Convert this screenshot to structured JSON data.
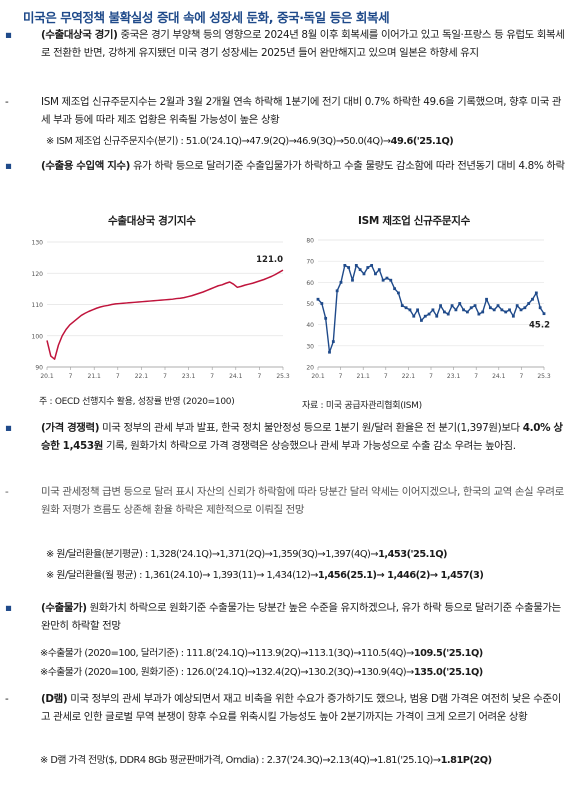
{
  "title": "미국은 무역정책 불확실성 증대 속에 성장세 둔화, 중국·독일 등은 회복세",
  "p1": {
    "head": "(수출대상국 경기)",
    "text": " 중국은 경기 부양책 등의 영향으로 2024년 8월 이후 회복세를 이어가고 있고 독일·프랑스 등 유럽도 회복세로 전환한 반면, 강하게 유지됐던 미국 경기 성장세는 2025년 들어 완만해지고 있으며 일본은 하향세 유지"
  },
  "p2": {
    "text": "ISM 제조업 신규주문지수는 2월과 3월 2개월 연속 하락해 1분기에 전기 대비 0.7% 하락한 49.6을 기록했으며, 향후 미국 관세 부과 등에 따라 제조 업황은 위축될 가능성이 높은 상황",
    "note": "※ ISM 제조업 신규주문지수(분기) : 51.0('24.1Q)→47.9(2Q)→46.9(3Q)→50.0(4Q)→",
    "note_end": "49.6('25.1Q)"
  },
  "p3": {
    "head": "(수출용 수입액 지수)",
    "text": " 유가 하락 등으로 달러기준 수출입물가가 하락하고 수출 물량도 감소함에 따라 전년동기 대비 4.8% 하락"
  },
  "chart_left": {
    "title": "수출대상국 경기지수",
    "source": "주 : OECD 선행지수 활용, 성장률 반영 (2020=100)"
  },
  "chart_right": {
    "title": "ISM 제조업 신규주문지수",
    "source": "자료 : 미국 공급자관리협회(ISM)"
  },
  "chart_data": [
    {
      "type": "line",
      "title": "수출대상국 경기지수",
      "x_ticks": [
        "20.1",
        "7",
        "21.1",
        "7",
        "22.1",
        "7",
        "23.1",
        "7",
        "24.1",
        "7",
        "25.3"
      ],
      "ylim": [
        90,
        130
      ],
      "y_ticks": [
        90,
        100,
        110,
        120,
        130
      ],
      "end_label": "121.0",
      "series": [
        {
          "values": [
            98.5,
            93.5,
            92.5,
            97.0,
            100.0,
            102.0,
            103.5,
            104.5,
            105.5,
            106.5,
            107.2,
            107.8,
            108.3,
            108.8,
            109.2,
            109.5,
            109.7,
            110.0,
            110.2,
            110.3,
            110.4,
            110.5,
            110.6,
            110.7,
            110.8,
            110.9,
            111.0,
            111.1,
            111.2,
            111.3,
            111.4,
            111.5,
            111.6,
            111.7,
            111.9,
            112.0,
            112.2,
            112.5,
            112.8,
            113.2,
            113.6,
            114.0,
            114.5,
            115.0,
            115.5,
            116.0,
            116.3,
            116.8,
            117.2,
            116.5,
            115.5,
            115.8,
            116.2,
            116.5,
            116.8,
            117.2,
            117.6,
            118.0,
            118.5,
            119.0,
            119.6,
            120.3,
            121.0
          ]
        }
      ],
      "grid": true
    },
    {
      "type": "line",
      "title": "ISM 제조업 신규주문지수",
      "x_ticks": [
        "20.1",
        "7",
        "21.1",
        "7",
        "22.1",
        "7",
        "23.1",
        "7",
        "24.1",
        "7",
        "25.3"
      ],
      "ylim": [
        20,
        80
      ],
      "y_ticks": [
        20,
        30,
        40,
        50,
        60,
        70,
        80
      ],
      "end_label": "45.2",
      "series": [
        {
          "values": [
            52,
            50,
            43,
            27,
            32,
            56,
            60,
            68,
            67,
            61,
            68,
            66,
            64,
            67,
            68,
            64,
            66,
            61,
            62,
            61,
            57,
            55,
            49,
            48,
            47,
            44,
            47,
            42,
            44,
            45,
            47,
            44,
            49,
            46,
            45,
            49,
            47,
            50,
            47,
            46,
            48,
            49,
            45,
            46,
            52,
            48,
            47,
            49,
            47,
            46,
            47,
            44,
            49,
            47,
            48,
            50,
            52,
            55,
            48,
            45.2
          ]
        }
      ],
      "grid": true
    }
  ],
  "p4": {
    "head": "(가격 경쟁력)",
    "text1": " 미국 정부의 관세 부과 발표, 한국 정치 불안정성 등으로 1분기 원/달러 환율은 전 분기(1,397원)보다 ",
    "b1": "4.0% 상승한 1,453원",
    "text2": " 기록, 원화가치 하락으로 가격 경쟁력은 상승했으나 관세 부과 가능성으로 수출 감소 우려는 높아짐."
  },
  "p5": {
    "text": "미국 관세정책 급변 등으로 달러 표시 자산의 신뢰가 하락함에 따라 당분간 달러 약세는 이어지겠으나, 한국의 교역 손실 우려로 원화 저평가 흐름도 상존해 환율 하락은 제한적으로 이뤄질 전망",
    "note1": "※ 원/달러환율(분기평균) : 1,328('24.1Q)→1,371(2Q)→1,359(3Q)→1,397(4Q)→",
    "note1_end": "1,453('25.1Q)",
    "note2": "※ 원/달러환율(월 평균) : 1,361(24.10)→ 1,393(11)→ 1,434(12)→",
    "note2_end": "1,456(25.1)→ 1,446(2)→ 1,457(3)"
  },
  "p6": {
    "head": "(수출물가)",
    "text": " 원화가치 하락으로 원화기준 수출물가는 당분간 높은 수준을 유지하겠으나, 유가 하락 등으로 달러기준 수출물가는 완만히 하락할 전망",
    "note1": "※수출물가 (2020=100, 달러기준) : 111.8('24.1Q)→113.9(2Q)→113.1(3Q)→110.5(4Q)→",
    "note1_end": "109.5('25.1Q)",
    "note2": "※수출물가 (2020=100, 원화기준) : 126.0('24.1Q)→132.4(2Q)→130.2(3Q)→130.9(4Q)→",
    "note2_end": "135.0('25.1Q)"
  },
  "p7": {
    "head": "(D램)",
    "text": " 미국 정부의 관세 부과가 예상되면서 재고 비축을 위한 수요가 증가하기도 했으나, 범용 D램 가격은 여전히 낮은 수준이고 관세로 인한 글로벌 무역 분쟁이 향후 수요를 위축시킬 가능성도 높아 2분기까지는 가격이 크게 오르기 어려운 상황",
    "note": "※ D램 가격 전망($, DDR4 8Gb 평균판매가격, Omdia) : 2.37('24.3Q)→2.13(4Q)→1.81('25.1Q)→",
    "note_end": "1.81P(2Q)"
  }
}
